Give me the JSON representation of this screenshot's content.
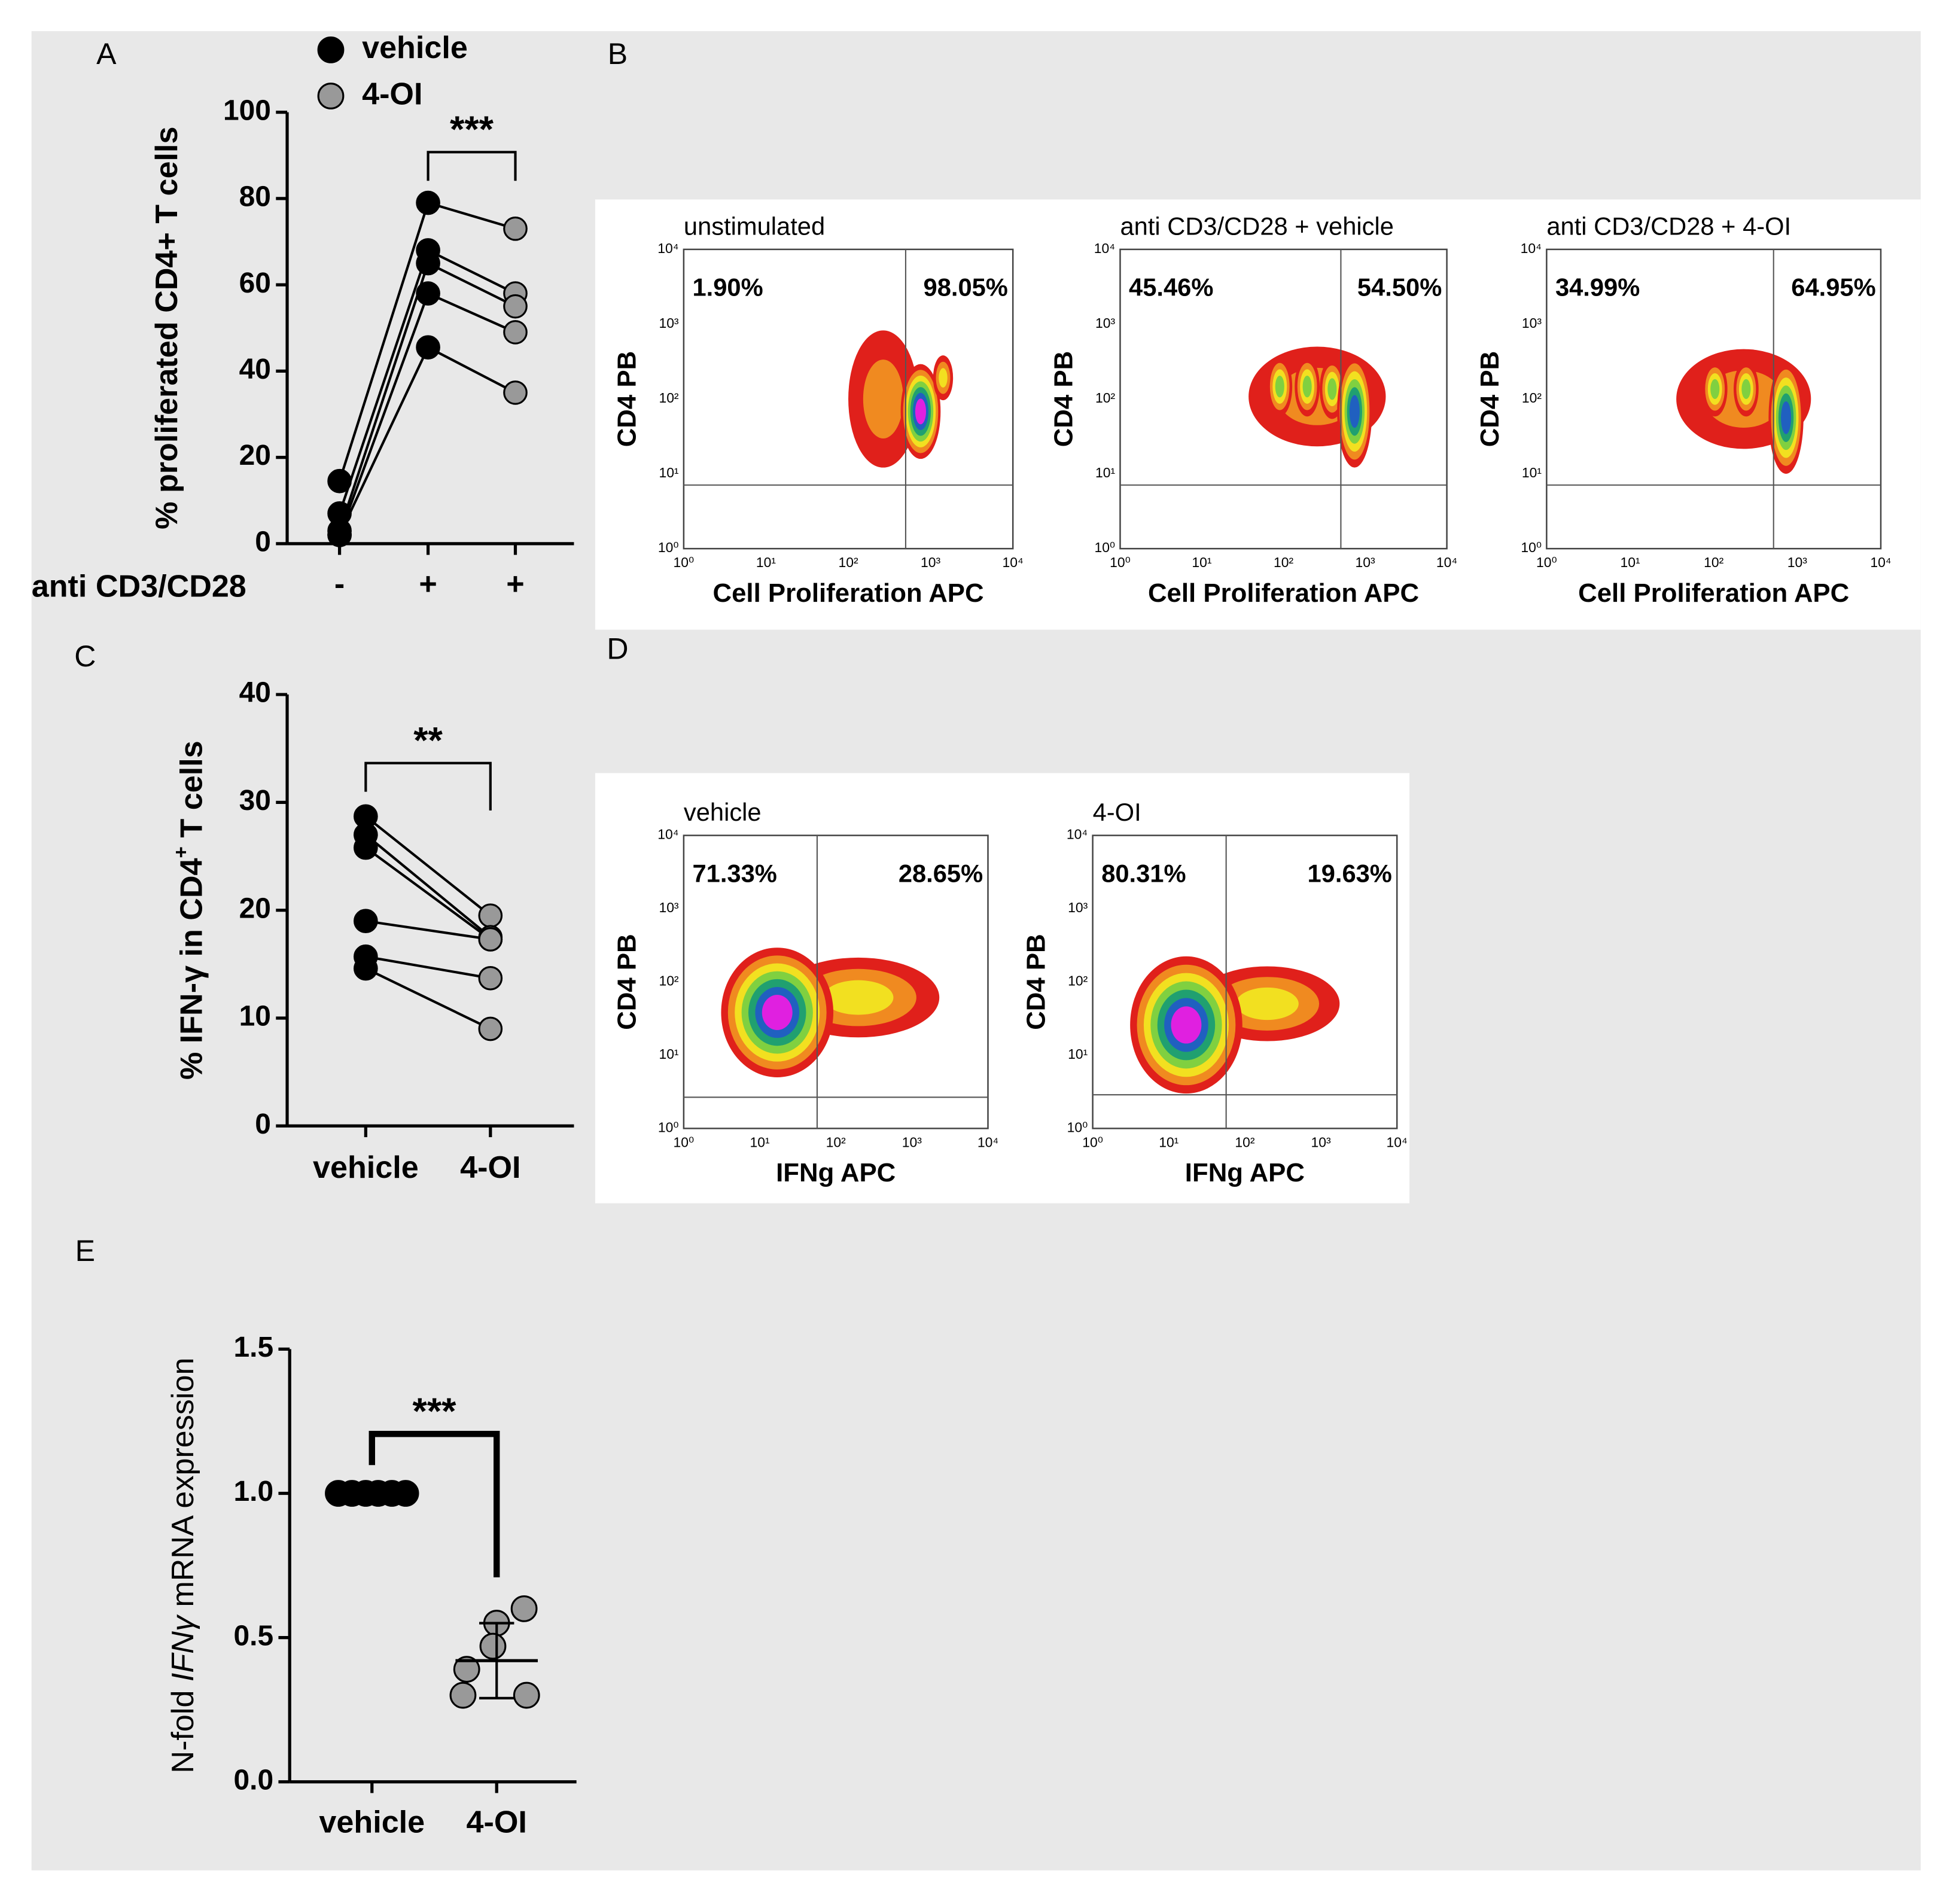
{
  "panel_labels": [
    "A",
    "B",
    "C",
    "D",
    "E"
  ],
  "chart_data": [
    {
      "type": "paired_dot",
      "ylabel": "% proliferated CD4+ T cells",
      "xlabel": "anti CD3/CD28",
      "categories": [
        "-",
        "+",
        "+"
      ],
      "colors": [
        "#000000",
        "#000000",
        "#999999"
      ],
      "values": [
        [
          14.5,
          7,
          3,
          2,
          2
        ],
        [
          79,
          68,
          65,
          58,
          45.5
        ],
        [
          73,
          58,
          55,
          49,
          35
        ]
      ],
      "legend": [
        {
          "name": "vehicle",
          "color": "#000000"
        },
        {
          "name": "4-OI",
          "color": "#999999"
        }
      ],
      "ylim": [
        0,
        100
      ],
      "yticks": [
        0,
        20,
        40,
        60,
        80,
        100
      ],
      "annotations": [
        "***"
      ]
    },
    {
      "type": "paired_dot",
      "ylabel": [
        "% IFN-γ in CD4",
        "+",
        " T cells"
      ],
      "categories": [
        "vehicle",
        "4-OI"
      ],
      "colors": [
        "#000000",
        "#999999"
      ],
      "values": [
        [
          28.7,
          27,
          25.8,
          19,
          15.7,
          14.6
        ],
        [
          19.5,
          17.5,
          17.3,
          17.3,
          13.7,
          9
        ]
      ],
      "ylim": [
        0,
        40
      ],
      "yticks": [
        0,
        10,
        20,
        30,
        40
      ],
      "annotations": [
        "**"
      ]
    },
    {
      "type": "dot_mean_sd",
      "ylabel": [
        "N-fold ",
        "IFNγ",
        " mRNA expression"
      ],
      "categories": [
        "vehicle",
        "4-OI"
      ],
      "colors": [
        "#000000",
        "#999999"
      ],
      "values": [
        [
          1,
          1,
          1,
          1,
          1,
          1
        ],
        [
          0.6,
          0.55,
          0.47,
          0.39,
          0.3,
          0.3
        ]
      ],
      "means": [
        1,
        0.42
      ],
      "sd": [
        0,
        0.13
      ],
      "ylim": [
        0,
        1.5
      ],
      "yticks": [
        {
          "value": 0,
          "label": "0.0"
        },
        0.5,
        {
          "value": 1,
          "label": "1.0"
        },
        1.5
      ],
      "annotations": [
        "***"
      ]
    }
  ],
  "flow_panels": [
    {
      "tick_labels": [
        "10⁰",
        "10¹",
        "10²",
        "10³",
        "10⁴"
      ],
      "plots": [
        {
          "title": "unstimulated",
          "percent_left": "1.90%",
          "percent_right": "98.05%",
          "ylabel": "CD4 PB",
          "xlabel": "Cell Proliferation APC"
        },
        {
          "title": "anti CD3/CD28 + vehicle",
          "percent_left": "45.46%",
          "percent_right": "54.50%",
          "ylabel": "CD4 PB",
          "xlabel": "Cell Proliferation APC"
        },
        {
          "title": "anti CD3/CD28 + 4-OI",
          "percent_left": "34.99%",
          "percent_right": "64.95%",
          "ylabel": "CD4 PB",
          "xlabel": "Cell Proliferation APC"
        }
      ]
    },
    {
      "tick_labels": [
        "10⁰",
        "10¹",
        "10²",
        "10³",
        "10⁴"
      ],
      "plots": [
        {
          "title": "vehicle",
          "percent_left": "71.33%",
          "percent_right": "28.65%",
          "ylabel": "CD4 PB",
          "xlabel": "IFNg APC"
        },
        {
          "title": "4-OI",
          "percent_left": "80.31%",
          "percent_right": "19.63%",
          "ylabel": "CD4 PB",
          "xlabel": "IFNg APC"
        }
      ]
    }
  ]
}
